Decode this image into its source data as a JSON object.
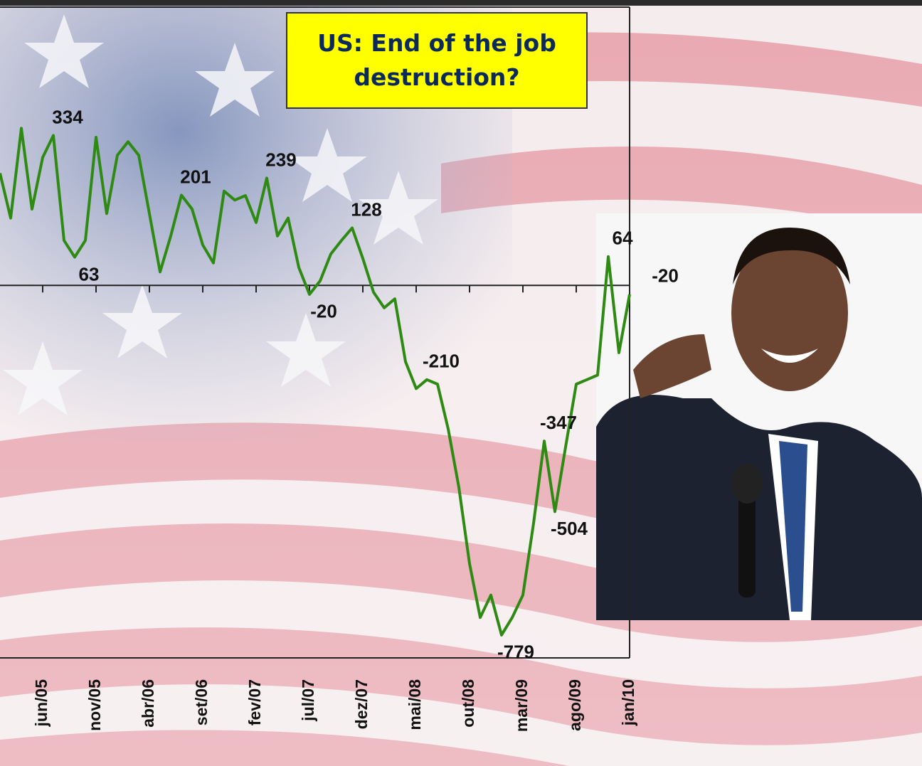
{
  "chart_data": {
    "type": "line",
    "title": "US: End of the job destruction?",
    "categories": [
      null,
      null,
      null,
      null,
      "jun/05",
      null,
      null,
      null,
      null,
      "nov/05",
      null,
      null,
      null,
      null,
      "abr/06",
      null,
      null,
      null,
      null,
      "set/06",
      null,
      null,
      null,
      null,
      "fev/07",
      null,
      null,
      null,
      null,
      "jul/07",
      null,
      null,
      null,
      null,
      "dez/07",
      null,
      null,
      null,
      null,
      "mai/08",
      null,
      null,
      null,
      null,
      "out/08",
      null,
      null,
      null,
      null,
      "mar/09",
      null,
      null,
      null,
      null,
      "ago/09",
      null,
      null,
      null,
      null,
      "jan/10"
    ],
    "series": [
      {
        "color": "#2f8a14",
        "values": [
          250,
          150,
          350,
          170,
          285,
          334,
          100,
          63,
          100,
          330,
          160,
          290,
          320,
          290,
          160,
          30,
          110,
          201,
          170,
          90,
          50,
          210,
          190,
          200,
          140,
          239,
          110,
          150,
          40,
          -20,
          10,
          70,
          100,
          128,
          60,
          -15,
          -50,
          -30,
          -170,
          -230,
          -210,
          -220,
          -320,
          -450,
          -620,
          -740,
          -690,
          -779,
          -740,
          -690,
          -530,
          -347,
          -504,
          -360,
          -220,
          -210,
          -200,
          64,
          -150,
          -20
        ],
        "value_labels": [
          null,
          null,
          null,
          null,
          null,
          "334",
          null,
          "63",
          null,
          null,
          null,
          null,
          null,
          null,
          null,
          null,
          null,
          "201",
          null,
          null,
          null,
          null,
          null,
          null,
          null,
          "239",
          null,
          null,
          null,
          "-20",
          null,
          null,
          null,
          "128",
          null,
          null,
          null,
          null,
          null,
          null,
          "-210",
          null,
          null,
          null,
          null,
          null,
          null,
          "-779",
          null,
          null,
          null,
          "-347",
          "-504",
          null,
          null,
          null,
          null,
          "64",
          null,
          "-20"
        ]
      }
    ],
    "ylim": [
      -830,
      620
    ]
  }
}
